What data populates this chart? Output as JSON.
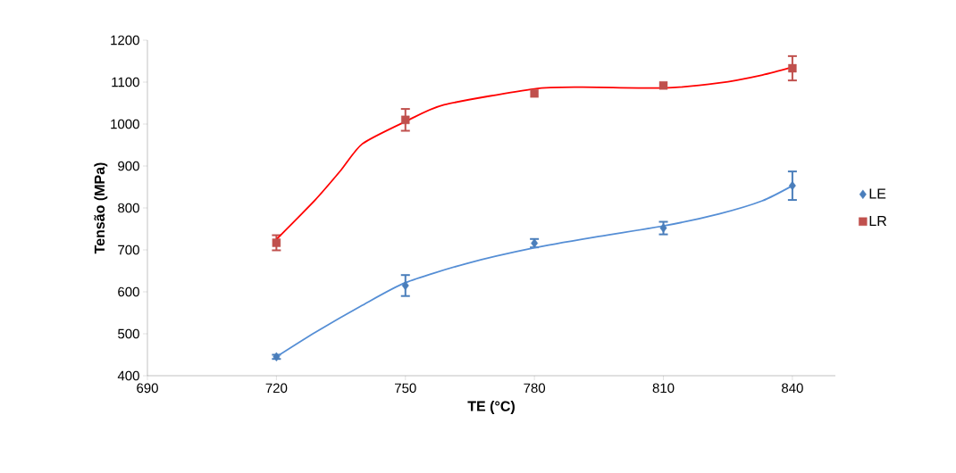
{
  "chart_data": {
    "type": "scatter",
    "xlabel": "TE (°C)",
    "ylabel": "Tensão (MPa)",
    "xlim": [
      690,
      850
    ],
    "xticks": [
      690,
      720,
      750,
      780,
      810,
      840
    ],
    "ylim": [
      400,
      1200
    ],
    "yticks": [
      400,
      500,
      600,
      700,
      800,
      900,
      1000,
      1100,
      1200
    ],
    "grid": false,
    "legend": "right",
    "series": [
      {
        "name": "LE",
        "marker": "diamond",
        "color": "#4a7ebb",
        "x": [
          720,
          750,
          780,
          810,
          840
        ],
        "values": [
          445,
          615,
          716,
          752,
          853
        ],
        "errors": [
          5,
          25,
          10,
          15,
          34
        ]
      },
      {
        "name": "LR",
        "marker": "square",
        "color": "#c0504d",
        "x": [
          720,
          750,
          780,
          810,
          840
        ],
        "values": [
          717,
          1010,
          1073,
          1092,
          1133
        ],
        "errors": [
          18,
          26,
          null,
          null,
          29
        ]
      },
      {
        "type": "line",
        "marker": "none",
        "color": "#558ed5",
        "x": [
          720,
          729,
          740,
          750,
          764,
          780,
          795,
          810,
          823,
          833,
          840
        ],
        "values": [
          445,
          503,
          568,
          622,
          667,
          705,
          732,
          757,
          786,
          817,
          853
        ]
      },
      {
        "type": "line",
        "marker": "none",
        "color": "#ff0000",
        "x": [
          720,
          729,
          735,
          740,
          750,
          759,
          780,
          791,
          810,
          823,
          833,
          840
        ],
        "values": [
          725,
          819,
          890,
          953,
          1006,
          1046,
          1084,
          1088,
          1086,
          1098,
          1117,
          1136
        ]
      }
    ]
  }
}
